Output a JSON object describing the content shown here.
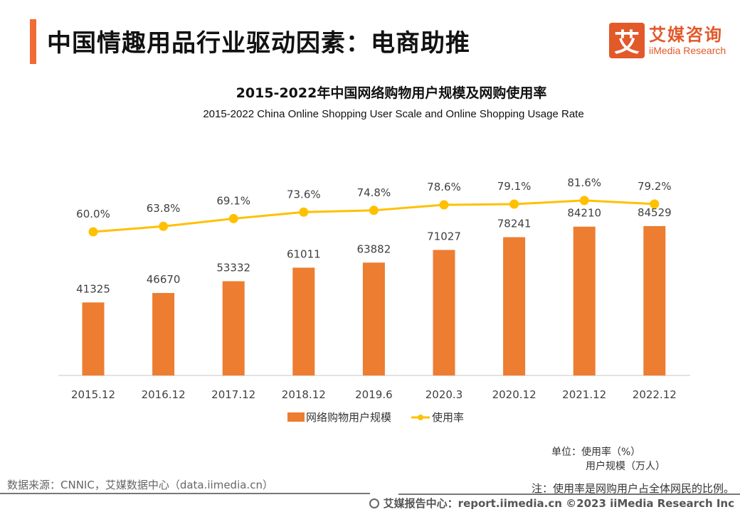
{
  "header": {
    "title": "中国情趣用品行业驱动因素：电商助推",
    "logo_glyph": "艾",
    "logo_cn": "艾媒咨询",
    "logo_en": "iiMedia Research"
  },
  "chart_data": {
    "type": "bar",
    "title": "2015-2022年中国网络购物用户规模及网购使用率",
    "subtitle": "2015-2022 China Online Shopping User Scale and Online Shopping Usage Rate",
    "categories": [
      "2015.12",
      "2016.12",
      "2017.12",
      "2018.12",
      "2019.6",
      "2020.3",
      "2020.12",
      "2021.12",
      "2022.12"
    ],
    "series": [
      {
        "name": "网络购物用户规模",
        "type": "bar",
        "color": "#ed7d31",
        "values": [
          41325,
          46670,
          53332,
          61011,
          63882,
          71027,
          78241,
          84210,
          84529
        ],
        "labels": [
          "41325",
          "46670",
          "53332",
          "61011",
          "63882",
          "71027",
          "78241",
          "84210",
          "84529"
        ]
      },
      {
        "name": "使用率",
        "type": "line",
        "color": "#ffc000",
        "values": [
          60.0,
          63.8,
          69.1,
          73.6,
          74.8,
          78.6,
          79.1,
          81.6,
          79.2
        ],
        "labels": [
          "60.0%",
          "63.8%",
          "69.1%",
          "73.6%",
          "74.8%",
          "78.6%",
          "79.1%",
          "81.6%",
          "79.2%"
        ]
      }
    ],
    "legend": {
      "position": "bottom",
      "items": [
        "网络购物用户规模",
        "使用率"
      ]
    },
    "grid": false,
    "xlabel": "",
    "ylabel": ""
  },
  "unit": {
    "line1": "单位：使用率（%）",
    "line2": "用户规模（万人）"
  },
  "source": "数据来源：CNNIC，艾媒数据中心（data.iimedia.cn）",
  "note": "注：使用率是网购用户占全体网民的比例。",
  "footer": "艾媒报告中心：report.iimedia.cn ©2023  iiMedia Research  Inc"
}
